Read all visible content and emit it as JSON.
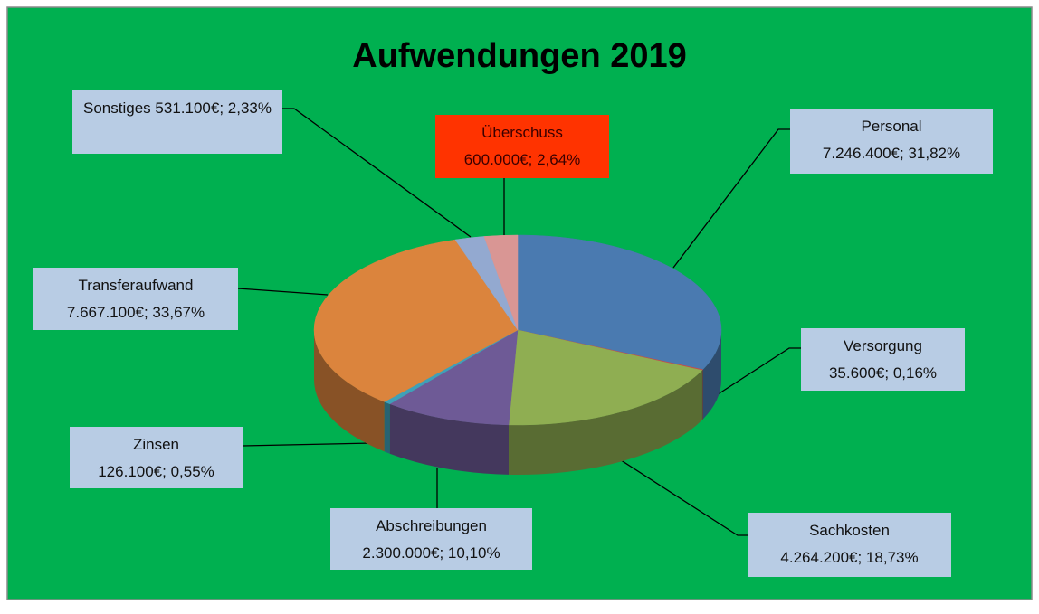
{
  "chart_data": {
    "type": "pie",
    "title": "Aufwendungen 2019",
    "categories": [
      "Personal",
      "Versorgung",
      "Sachkosten",
      "Abschreibungen",
      "Zinsen",
      "Transferaufwand",
      "Sonstiges",
      "Überschuss"
    ],
    "values": [
      7246400,
      35600,
      4264200,
      2300000,
      126100,
      7667100,
      531100,
      600000
    ],
    "value_labels": [
      "7.246.400€; 31,82%",
      "35.600€; 0,16%",
      "4.264.200€; 18,73%",
      "2.300.000€; 10,10%",
      "126.100€; 0,55%",
      "7.667.100€; 33,67%",
      "531.100€; 2,33%",
      "600.000€; 2,64%"
    ],
    "colors": [
      "#4a7ab0",
      "#c0504d",
      "#8fae52",
      "#6e5a96",
      "#3fa0b8",
      "#db843d",
      "#93a9d0",
      "#d99694"
    ]
  }
}
